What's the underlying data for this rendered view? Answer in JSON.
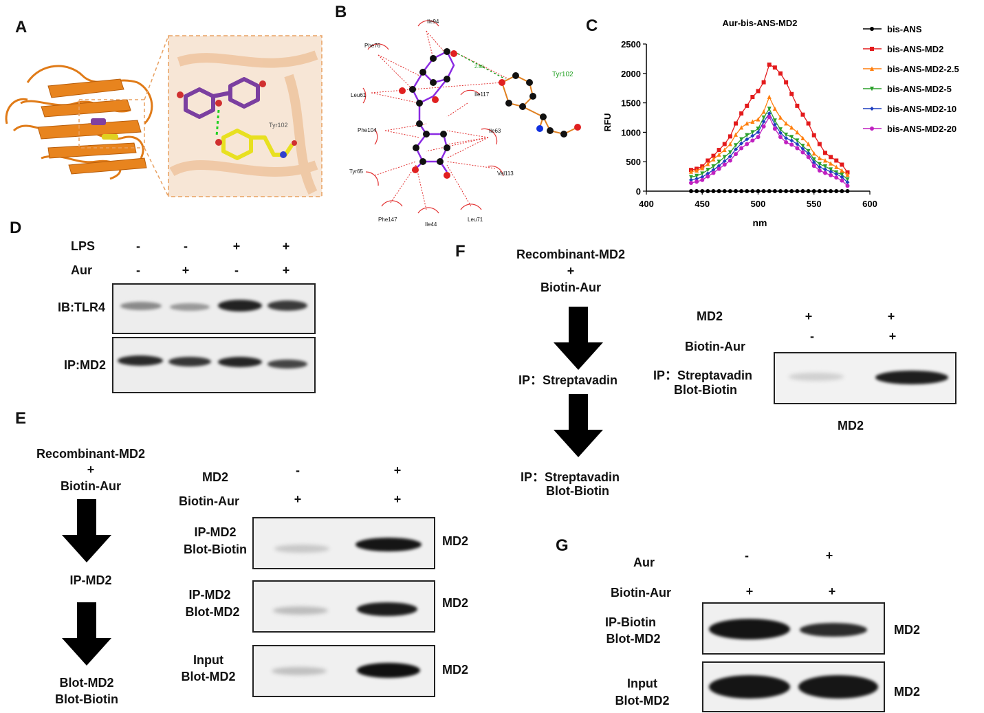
{
  "panels": {
    "A": "A",
    "B": "B",
    "C": "C",
    "D": "D",
    "E": "E",
    "F": "F",
    "G": "G"
  },
  "panelA": {
    "residue_label": "Tyr102"
  },
  "panelB": {
    "residues": [
      "Ile94",
      "Phe76",
      "Leu61",
      "Phe104",
      "Tyr65",
      "Phe147",
      "Ile44",
      "Leu71",
      "Val113",
      "Ile63",
      "Ile117"
    ],
    "hbond_partner": "Tyr102",
    "hbond_distance": "2.98"
  },
  "chart_data": {
    "type": "line",
    "title": "Aur-bis-ANS-MD2",
    "xlabel": "nm",
    "ylabel": "RFU",
    "xlim": [
      400,
      600
    ],
    "ylim": [
      0,
      2500
    ],
    "xticks": [
      400,
      450,
      500,
      550,
      600
    ],
    "yticks": [
      0,
      500,
      1000,
      1500,
      2000,
      2500
    ],
    "grid": false,
    "legend_position": "right",
    "x": [
      440,
      445,
      450,
      455,
      460,
      465,
      470,
      475,
      480,
      485,
      490,
      495,
      500,
      505,
      510,
      515,
      520,
      525,
      530,
      535,
      540,
      545,
      550,
      555,
      560,
      565,
      570,
      575,
      580
    ],
    "series": [
      {
        "name": "bis-ANS",
        "color": "#000000",
        "marker": "circle",
        "values": [
          0,
          0,
          0,
          0,
          0,
          0,
          0,
          0,
          0,
          0,
          0,
          0,
          0,
          0,
          0,
          0,
          0,
          0,
          0,
          0,
          0,
          0,
          0,
          0,
          0,
          0,
          0,
          0,
          0
        ]
      },
      {
        "name": "bis-ANS-MD2",
        "color": "#e31a1c",
        "marker": "square",
        "values": [
          360,
          380,
          420,
          520,
          600,
          700,
          800,
          930,
          1150,
          1320,
          1450,
          1600,
          1700,
          1850,
          2150,
          2100,
          2000,
          1850,
          1650,
          1450,
          1300,
          1150,
          950,
          800,
          650,
          580,
          520,
          450,
          320
        ]
      },
      {
        "name": "bis-ANS-MD2-2.5",
        "color": "#ff7f0e",
        "marker": "triangle",
        "values": [
          330,
          350,
          390,
          460,
          540,
          620,
          700,
          800,
          960,
          1080,
          1150,
          1180,
          1220,
          1350,
          1600,
          1400,
          1250,
          1150,
          1080,
          1000,
          900,
          800,
          640,
          560,
          520,
          470,
          410,
          350,
          280
        ]
      },
      {
        "name": "bis-ANS-MD2-5",
        "color": "#2ca02c",
        "marker": "triangle-down",
        "values": [
          240,
          260,
          300,
          360,
          420,
          500,
          580,
          660,
          780,
          880,
          950,
          1000,
          1060,
          1250,
          1400,
          1200,
          1050,
          960,
          920,
          860,
          770,
          680,
          540,
          460,
          420,
          370,
          320,
          280,
          200
        ]
      },
      {
        "name": "bis-ANS-MD2-10",
        "color": "#1f3fbf",
        "marker": "diamond",
        "values": [
          190,
          210,
          240,
          300,
          360,
          430,
          510,
          590,
          710,
          810,
          880,
          940,
          1000,
          1180,
          1320,
          1130,
          990,
          900,
          860,
          800,
          720,
          640,
          490,
          410,
          370,
          330,
          290,
          240,
          150
        ]
      },
      {
        "name": "bis-ANS-MD2-20",
        "color": "#c020c0",
        "marker": "circle",
        "values": [
          140,
          160,
          190,
          250,
          310,
          380,
          450,
          520,
          630,
          730,
          800,
          860,
          920,
          1100,
          1260,
          1060,
          920,
          830,
          790,
          730,
          660,
          580,
          430,
          350,
          310,
          270,
          230,
          180,
          90
        ]
      }
    ]
  },
  "panelD": {
    "row_labels": [
      "LPS",
      "Aur"
    ],
    "lps": [
      "-",
      "-",
      "+",
      "+"
    ],
    "aur": [
      "-",
      "+",
      "-",
      "+"
    ],
    "blot1_label": "IB:TLR4",
    "blot2_label": "IP:MD2"
  },
  "panelE": {
    "flow": [
      "Recombinant-MD2",
      "+",
      "Biotin-Aur",
      "IP-MD2",
      "Blot-MD2",
      "Blot-Biotin"
    ],
    "row_labels": [
      "MD2",
      "Biotin-Aur"
    ],
    "md2": [
      "-",
      "+"
    ],
    "biotin": [
      "+",
      "+"
    ],
    "blots": [
      {
        "label1": "IP-MD2",
        "label2": "Blot-Biotin",
        "right": "MD2"
      },
      {
        "label1": "IP-MD2",
        "label2": "Blot-MD2",
        "right": "MD2"
      },
      {
        "label1": "Input",
        "label2": "Blot-MD2",
        "right": "MD2"
      }
    ]
  },
  "panelF": {
    "flow": [
      "Recombinant-MD2",
      "+",
      "Biotin-Aur",
      "IP：Streptavadin",
      "IP：Streptavadin",
      "Blot-Biotin"
    ],
    "row_labels": [
      "MD2",
      "Biotin-Aur"
    ],
    "md2": [
      "+",
      "+"
    ],
    "biotin": [
      "-",
      "+"
    ],
    "blot_label1": "IP：Streptavadin",
    "blot_label2": "Blot-Biotin",
    "bottom_label": "MD2"
  },
  "panelG": {
    "row_labels": [
      "Aur",
      "Biotin-Aur"
    ],
    "aur": [
      "-",
      "+"
    ],
    "biotin": [
      "+",
      "+"
    ],
    "blots": [
      {
        "label1": "IP-Biotin",
        "label2": "Blot-MD2",
        "right": "MD2"
      },
      {
        "label1": "Input",
        "label2": "Blot-MD2",
        "right": "MD2"
      }
    ]
  }
}
